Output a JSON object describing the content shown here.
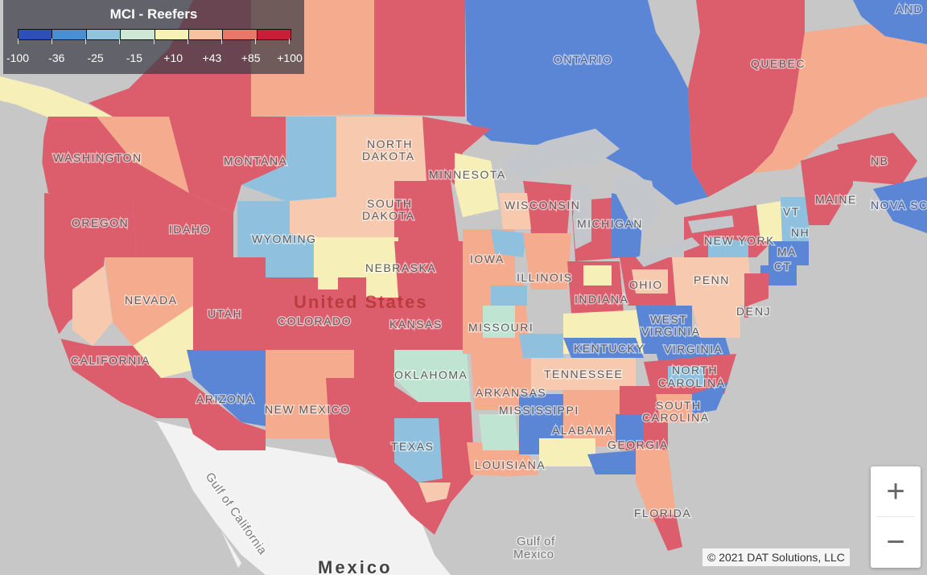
{
  "legend": {
    "title": "MCI - Reefers",
    "colors": [
      "#2f4fb8",
      "#4a8fd4",
      "#8fc4dc",
      "#cfe8d6",
      "#f8f1b4",
      "#f6c2a2",
      "#e8776a",
      "#c81e37"
    ],
    "ticks": [
      "-100",
      "-36",
      "-25",
      "-15",
      "+10",
      "+43",
      "+85",
      "+100"
    ]
  },
  "colors": {
    "red": "#dc5d6c",
    "darkred": "#c83a4e",
    "salmon": "#f4ab8e",
    "peach": "#f7cab0",
    "yellow": "#f6f0b8",
    "mint": "#bfe4d2",
    "lightblue": "#8fc1de",
    "blue": "#5b86d6",
    "darkblue": "#3a68c8",
    "land": "#f2f2f2",
    "lake": "#c3c7cc",
    "ocean": "#c7c7c7"
  },
  "map_labels": {
    "us_center": "United States",
    "mexico": "Mexico",
    "ontario": "ONTARIO",
    "quebec": "QUEBEC",
    "and": "AND",
    "nb": "NB",
    "nova_scotia": "NOVA SC",
    "washington": "WASHINGTON",
    "oregon": "OREGON",
    "idaho": "IDAHO",
    "montana": "MONTANA",
    "wyoming": "WYOMING",
    "north_dakota_1": "NORTH",
    "north_dakota_2": "DAKOTA",
    "south_dakota_1": "SOUTH",
    "south_dakota_2": "DAKOTA",
    "minnesota": "MINNESOTA",
    "nebraska": "NEBRASKA",
    "iowa": "IOWA",
    "wisconsin": "WISCONSIN",
    "michigan": "MICHIGAN",
    "illinois": "ILLINOIS",
    "indiana": "INDIANA",
    "ohio": "OHIO",
    "penn": "PENN",
    "new_york": "NEW YORK",
    "maine": "MAINE",
    "vt": "VT",
    "nh": "NH",
    "ma": "MA",
    "ct": "CT",
    "nj": "NJ",
    "de": "DE",
    "nevada": "NEVADA",
    "utah": "UTAH",
    "colorado": "COLORADO",
    "kansas": "KANSAS",
    "missouri": "MISSOURI",
    "kentucky": "KENTUCKY",
    "west_virginia_1": "WEST",
    "west_virginia_2": "VIRGINIA",
    "virginia": "VIRGINIA",
    "california": "CALIFORNIA",
    "arizona": "ARIZONA",
    "new_mexico": "NEW MEXICO",
    "oklahoma": "OKLAHOMA",
    "texas": "TEXAS",
    "arkansas": "ARKANSAS",
    "tennessee": "TENNESSEE",
    "mississippi": "MISSISSIPPI",
    "alabama": "ALABAMA",
    "georgia": "GEORGIA",
    "louisiana": "LOUISIANA",
    "north_carolina_1": "NORTH",
    "north_carolina_2": "CAROLINA",
    "south_carolina_1": "SOUTH",
    "south_carolina_2": "CAROLINA",
    "florida": "FLORIDA",
    "gulf_mexico_1": "Gulf of",
    "gulf_mexico_2": "Mexico",
    "gulf_california": "Gulf of California"
  },
  "zoom": {
    "in_label": "+",
    "out_label": "−"
  },
  "credit": "© 2021 DAT Solutions, LLC"
}
